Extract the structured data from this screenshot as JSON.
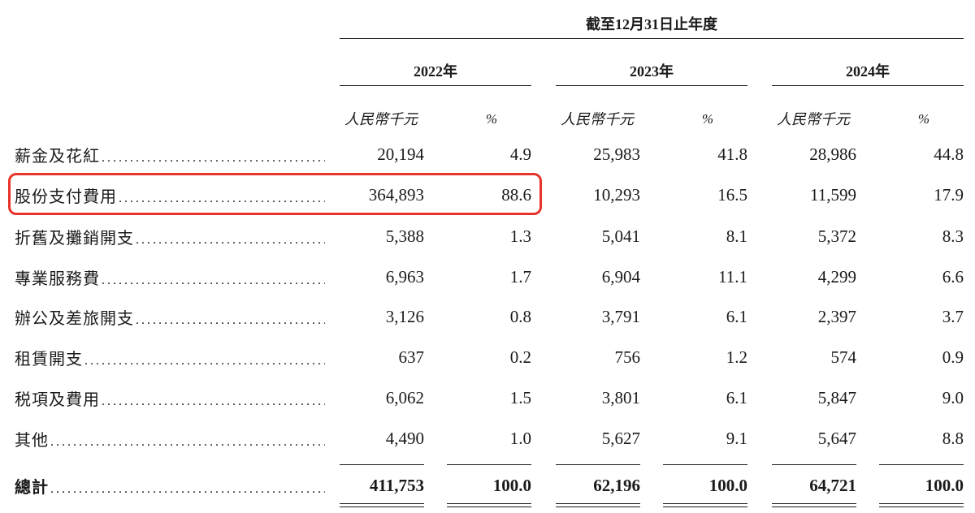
{
  "header": {
    "period": "截至12月31日止年度",
    "years": [
      "2022年",
      "2023年",
      "2024年"
    ],
    "unit_label": "人民幣千元",
    "pct_label": "%"
  },
  "rows": [
    {
      "label": "薪金及花紅",
      "values": [
        "20,194",
        "4.9",
        "25,983",
        "41.8",
        "28,986",
        "44.8"
      ]
    },
    {
      "label": "股份支付費用",
      "values": [
        "364,893",
        "88.6",
        "10,293",
        "16.5",
        "11,599",
        "17.9"
      ]
    },
    {
      "label": "折舊及攤銷開支",
      "values": [
        "5,388",
        "1.3",
        "5,041",
        "8.1",
        "5,372",
        "8.3"
      ]
    },
    {
      "label": "專業服務費",
      "values": [
        "6,963",
        "1.7",
        "6,904",
        "11.1",
        "4,299",
        "6.6"
      ]
    },
    {
      "label": "辦公及差旅開支",
      "values": [
        "3,126",
        "0.8",
        "3,791",
        "6.1",
        "2,397",
        "3.7"
      ]
    },
    {
      "label": "租賃開支",
      "values": [
        "637",
        "0.2",
        "756",
        "1.2",
        "574",
        "0.9"
      ]
    },
    {
      "label": "税項及費用",
      "values": [
        "6,062",
        "1.5",
        "3,801",
        "6.1",
        "5,847",
        "9.0"
      ]
    },
    {
      "label": "其他",
      "values": [
        "4,490",
        "1.0",
        "5,627",
        "9.1",
        "5,647",
        "8.8"
      ]
    }
  ],
  "total": {
    "label": "總計",
    "values": [
      "411,753",
      "100.0",
      "62,196",
      "100.0",
      "64,721",
      "100.0"
    ]
  },
  "colors": {
    "highlight": "#e8332a",
    "text": "#1a1a1a"
  }
}
